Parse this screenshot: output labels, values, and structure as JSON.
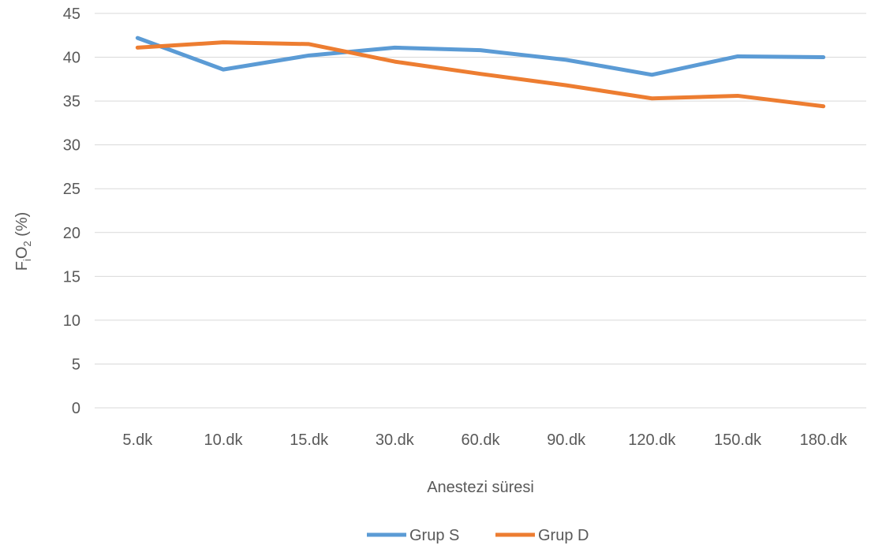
{
  "chart_data": {
    "type": "line",
    "categories": [
      "5.dk",
      "10.dk",
      "15.dk",
      "30.dk",
      "60.dk",
      "90.dk",
      "120.dk",
      "150.dk",
      "180.dk"
    ],
    "series": [
      {
        "name": "Grup S",
        "color": "#5B9BD5",
        "values": [
          42.2,
          38.6,
          40.2,
          41.1,
          40.8,
          39.7,
          38.0,
          40.1,
          40.0
        ]
      },
      {
        "name": "Grup D",
        "color": "#ED7D31",
        "values": [
          41.1,
          41.7,
          41.5,
          39.5,
          38.1,
          36.8,
          35.3,
          35.6,
          34.4
        ]
      }
    ],
    "xlabel": "Anestezi süresi",
    "ylabel": {
      "main": "F",
      "sub1": "i",
      "mid": "O",
      "sub2": "2",
      "tail": " (%)"
    },
    "ylim": [
      0,
      45
    ],
    "yticks": [
      0,
      5,
      10,
      15,
      20,
      25,
      30,
      35,
      40,
      45
    ],
    "grid": true,
    "legend_position": "bottom"
  }
}
